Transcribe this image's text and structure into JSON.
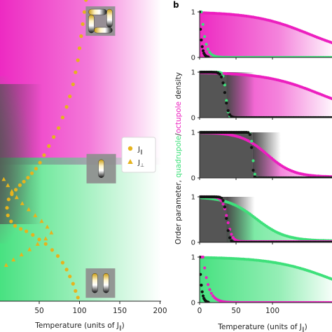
{
  "figure": {
    "panel_label_b": "b"
  },
  "chart_data": [
    {
      "type": "heatmap",
      "xlabel": "Temperature (units of J",
      "xlabel_sub": "∥",
      "xlabel_close": ")",
      "xlim": [
        0,
        200
      ],
      "xticks": [
        50,
        100,
        150,
        200
      ],
      "colors": {
        "quadrupole": "#3ee07a",
        "octupole": "#ec1fbf",
        "ordered_dark": "#505050",
        "marker": "#e6b31e"
      },
      "legend": {
        "placement": "right-middle",
        "entries": [
          {
            "marker": "circle",
            "label": "J",
            "sub": "∥"
          },
          {
            "marker": "triangle",
            "label": "J",
            "sub": "⊥"
          }
        ]
      },
      "series": [
        {
          "marker": "circle",
          "points": [
            [
              108,
              1.0
            ],
            [
              106,
              0.96
            ],
            [
              104,
              0.92
            ],
            [
              102,
              0.88
            ],
            [
              100,
              0.84
            ],
            [
              98,
              0.8
            ],
            [
              95,
              0.76
            ],
            [
              92,
              0.72
            ],
            [
              88,
              0.68
            ],
            [
              84,
              0.645
            ],
            [
              79,
              0.61
            ],
            [
              74,
              0.575
            ],
            [
              68,
              0.545
            ],
            [
              62,
              0.515
            ],
            [
              56,
              0.485
            ],
            [
              51,
              0.46
            ],
            [
              46,
              0.44
            ],
            [
              41,
              0.425
            ],
            [
              36,
              0.41
            ],
            [
              31,
              0.397
            ],
            [
              26,
              0.385
            ],
            [
              21,
              0.37
            ],
            [
              16,
              0.355
            ],
            [
              12,
              0.338
            ],
            [
              10,
              0.31
            ],
            [
              11,
              0.285
            ],
            [
              15,
              0.265
            ],
            [
              20,
              0.25
            ],
            [
              27,
              0.24
            ],
            [
              34,
              0.232
            ],
            [
              42,
              0.22
            ],
            [
              50,
              0.205
            ],
            [
              58,
              0.19
            ],
            [
              66,
              0.17
            ],
            [
              73,
              0.15
            ],
            [
              79,
              0.128
            ],
            [
              84,
              0.105
            ],
            [
              88,
              0.082
            ],
            [
              92,
              0.058
            ],
            [
              95,
              0.034
            ],
            [
              98,
              0.012
            ]
          ]
        },
        {
          "marker": "triangle",
          "points": [
            [
              6,
              0.405
            ],
            [
              11,
              0.385
            ],
            [
              16,
              0.365
            ],
            [
              22,
              0.345
            ],
            [
              29,
              0.325
            ],
            [
              37,
              0.305
            ],
            [
              45,
              0.285
            ],
            [
              53,
              0.266
            ],
            [
              60,
              0.247
            ],
            [
              65,
              0.228
            ],
            [
              58,
              0.208
            ],
            [
              48,
              0.19
            ],
            [
              38,
              0.172
            ],
            [
              28,
              0.155
            ],
            [
              18,
              0.138
            ],
            [
              9,
              0.12
            ]
          ]
        }
      ],
      "insets": [
        {
          "name": "octupole-inset",
          "x": 126,
          "y_frac": 0.93
        },
        {
          "name": "quadrupole-inset",
          "x": 127,
          "y_frac": 0.44
        },
        {
          "name": "quadrupole-pair-inset",
          "x": 126,
          "y_frac": 0.06
        }
      ]
    },
    {
      "type": "area",
      "ylabel_prefix": "Order parameter, ",
      "ylabel_quad": "quadrupole",
      "ylabel_sep": "/",
      "ylabel_oct": "octupole",
      "ylabel_suffix": " density",
      "xlabel": "Temperature (units of J",
      "xlabel_sub": "∥",
      "xlabel_close": ")",
      "xlim": [
        0,
        150
      ],
      "xticks": [
        0,
        50,
        100
      ],
      "ylim": [
        0,
        1
      ],
      "yticks": [
        0,
        1
      ],
      "subpanels": [
        {
          "dark_end": 2,
          "fill": "octupole",
          "primary": {
            "kind": "sig",
            "tc": 150,
            "w": 38,
            "base": 0.03
          },
          "secondary": {
            "kind": "drop",
            "tc": 3,
            "tau": 5,
            "floor": 0.0
          },
          "tail_floor": 0.02
        },
        {
          "dark_end": 37,
          "fill": "octupole",
          "primary": {
            "kind": "sig",
            "tc": 165,
            "w": 38,
            "base": 0.04
          },
          "secondary": {
            "kind": "sig",
            "tc": 36,
            "w": 1.6,
            "base": 0.0
          },
          "black_drop": {
            "tc": 35,
            "w": 2.4
          }
        },
        {
          "dark_end": 73,
          "fill": "octupole",
          "primary": {
            "kind": "sig",
            "tc": 93,
            "w": 18,
            "base": 0.02
          },
          "secondary": {
            "kind": "sig",
            "tc": 73,
            "w": 1.2,
            "base": 0.0
          },
          "black_drop": {
            "tc": 72,
            "w": 1.0
          }
        },
        {
          "dark_end": 37,
          "fill": "quadrupole",
          "primary": {
            "kind": "sig",
            "tc": 78,
            "w": 20,
            "base": 0.03
          },
          "secondary": {
            "kind": "sig",
            "tc": 38,
            "w": 3.5,
            "base": 0.015
          },
          "black_drop": {
            "tc": 37,
            "w": 2.0
          }
        },
        {
          "dark_end": 2,
          "fill": "quadrupole",
          "primary": {
            "kind": "sig",
            "tc": 180,
            "w": 40,
            "base": 0.05
          },
          "secondary": {
            "kind": "drop",
            "tc": 5,
            "tau": 7,
            "floor": 0.0
          },
          "tail_floor": 0.02
        }
      ]
    }
  ]
}
